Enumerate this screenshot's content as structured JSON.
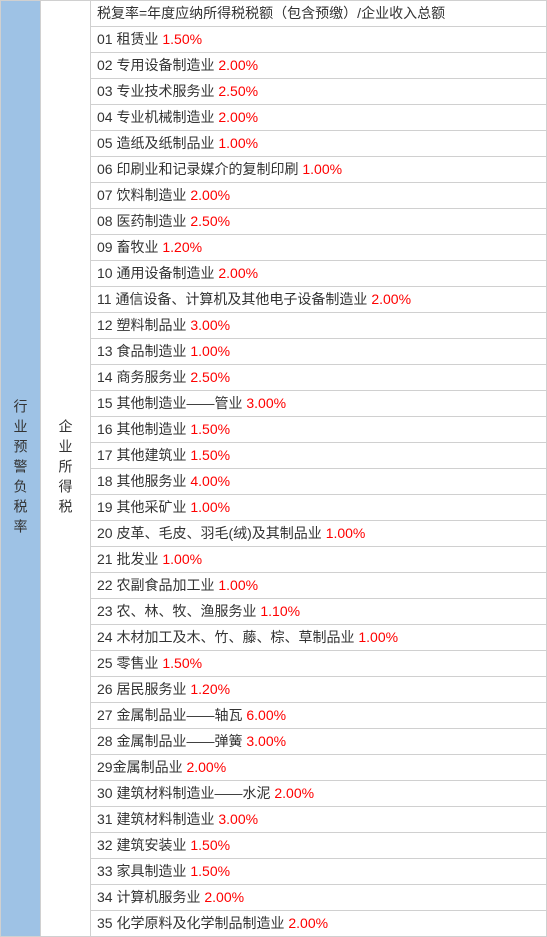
{
  "leftLabel": "行业预警负税率",
  "midLabel": "企业所得税",
  "formula": "税复率=年度应纳所得税税额（包含预缴）/企业收入总额",
  "rows": [
    {
      "num": "01",
      "label": "租赁业",
      "rate": "1.50%"
    },
    {
      "num": "02",
      "label": "专用设备制造业",
      "rate": "2.00%"
    },
    {
      "num": "03",
      "label": "专业技术服务业",
      "rate": "2.50%"
    },
    {
      "num": "04",
      "label": "专业机械制造业",
      "rate": "2.00%"
    },
    {
      "num": "05",
      "label": "造纸及纸制品业",
      "rate": "1.00%"
    },
    {
      "num": "06",
      "label": "印刷业和记录媒介的复制印刷",
      "rate": "1.00%"
    },
    {
      "num": "07",
      "label": "饮料制造业",
      "rate": "2.00%"
    },
    {
      "num": "08",
      "label": "医药制造业",
      "rate": "2.50%"
    },
    {
      "num": "09",
      "label": "畜牧业",
      "rate": "1.20%"
    },
    {
      "num": "10",
      "label": "通用设备制造业",
      "rate": "2.00%"
    },
    {
      "num": "11",
      "label": "通信设备、计算机及其他电子设备制造业",
      "rate": "2.00%"
    },
    {
      "num": "12",
      "label": "塑料制品业",
      "rate": "3.00%"
    },
    {
      "num": "13",
      "label": "食品制造业",
      "rate": "1.00%"
    },
    {
      "num": "14",
      "label": "商务服务业",
      "rate": "2.50%"
    },
    {
      "num": "15",
      "label": "其他制造业——管业",
      "rate": "3.00%"
    },
    {
      "num": "16",
      "label": "其他制造业",
      "rate": "1.50%"
    },
    {
      "num": "17",
      "label": "其他建筑业",
      "rate": "1.50%"
    },
    {
      "num": "18",
      "label": "其他服务业",
      "rate": "4.00%"
    },
    {
      "num": "19",
      "label": "其他采矿业",
      "rate": "1.00%"
    },
    {
      "num": "20",
      "label": "皮革、毛皮、羽毛(绒)及其制品业",
      "rate": "1.00%"
    },
    {
      "num": "21",
      "label": "批发业",
      "rate": "1.00%"
    },
    {
      "num": "22",
      "label": "农副食品加工业",
      "rate": "1.00%"
    },
    {
      "num": "23",
      "label": "农、林、牧、渔服务业",
      "rate": "1.10%"
    },
    {
      "num": "24",
      "label": "木材加工及木、竹、藤、棕、草制品业",
      "rate": "1.00%"
    },
    {
      "num": "25",
      "label": "零售业",
      "rate": "1.50%"
    },
    {
      "num": "26",
      "label": "居民服务业",
      "rate": "1.20%"
    },
    {
      "num": "27",
      "label": "金属制品业——轴瓦",
      "rate": "6.00%"
    },
    {
      "num": "28",
      "label": "金属制品业——弹簧",
      "rate": "3.00%"
    },
    {
      "num": "29",
      "label": "金属制品业",
      "rate": "2.00%",
      "nospace": true
    },
    {
      "num": "30",
      "label": "建筑材料制造业——水泥",
      "rate": "2.00%"
    },
    {
      "num": "31",
      "label": "建筑材料制造业",
      "rate": "3.00%"
    },
    {
      "num": "32",
      "label": "建筑安装业",
      "rate": "1.50%"
    },
    {
      "num": "33",
      "label": "家具制造业",
      "rate": "1.50%"
    },
    {
      "num": "34",
      "label": "计算机服务业",
      "rate": "2.00%"
    },
    {
      "num": "35",
      "label": "化学原料及化学制品制造业",
      "rate": "2.00%"
    }
  ],
  "colors": {
    "leftBg": "#9ec2e5",
    "rateColor": "#ff0000",
    "textColor": "#333333",
    "borderColor": "#d0d0d0"
  }
}
